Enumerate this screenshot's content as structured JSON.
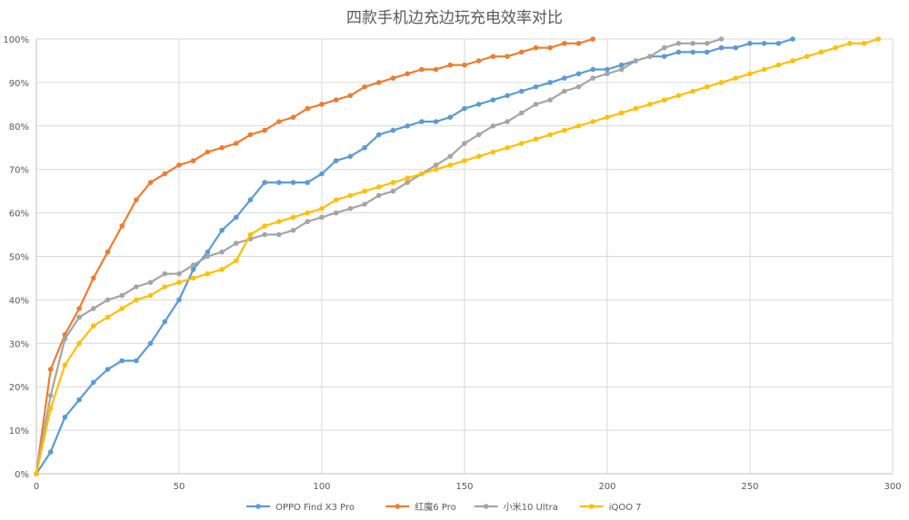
{
  "chart_data": {
    "type": "line",
    "title": "四款手机边充边玩充电效率对比",
    "xlabel": "",
    "ylabel": "",
    "xlim": [
      0,
      300
    ],
    "ylim": [
      0,
      100
    ],
    "x_ticks": [
      0,
      50,
      100,
      150,
      200,
      250,
      300
    ],
    "x_tick_labels": [
      "0",
      "50",
      "100",
      "150",
      "200",
      "250",
      "300"
    ],
    "y_ticks": [
      0,
      10,
      20,
      30,
      40,
      50,
      60,
      70,
      80,
      90,
      100
    ],
    "y_tick_labels": [
      "0%",
      "10%",
      "20%",
      "30%",
      "40%",
      "50%",
      "60%",
      "70%",
      "80%",
      "90%",
      "100%"
    ],
    "grid": true,
    "legend_position": "bottom",
    "series": [
      {
        "name": "OPPO Find X3 Pro",
        "color": "#5b9bd5",
        "points": [
          [
            0,
            0
          ],
          [
            5,
            5
          ],
          [
            10,
            13
          ],
          [
            15,
            17
          ],
          [
            20,
            21
          ],
          [
            25,
            24
          ],
          [
            30,
            26
          ],
          [
            35,
            26
          ],
          [
            40,
            30
          ],
          [
            45,
            35
          ],
          [
            50,
            40
          ],
          [
            55,
            47
          ],
          [
            60,
            51
          ],
          [
            65,
            56
          ],
          [
            70,
            59
          ],
          [
            75,
            63
          ],
          [
            80,
            67
          ],
          [
            85,
            67
          ],
          [
            90,
            67
          ],
          [
            95,
            67
          ],
          [
            100,
            69
          ],
          [
            105,
            72
          ],
          [
            110,
            73
          ],
          [
            115,
            75
          ],
          [
            120,
            78
          ],
          [
            125,
            79
          ],
          [
            130,
            80
          ],
          [
            135,
            81
          ],
          [
            140,
            81
          ],
          [
            145,
            82
          ],
          [
            150,
            84
          ],
          [
            155,
            85
          ],
          [
            160,
            86
          ],
          [
            165,
            87
          ],
          [
            170,
            88
          ],
          [
            175,
            89
          ],
          [
            180,
            90
          ],
          [
            185,
            91
          ],
          [
            190,
            92
          ],
          [
            195,
            93
          ],
          [
            200,
            93
          ],
          [
            205,
            94
          ],
          [
            210,
            95
          ],
          [
            215,
            96
          ],
          [
            220,
            96
          ],
          [
            225,
            97
          ],
          [
            230,
            97
          ],
          [
            235,
            97
          ],
          [
            240,
            98
          ],
          [
            245,
            98
          ],
          [
            250,
            99
          ],
          [
            255,
            99
          ],
          [
            260,
            99
          ],
          [
            265,
            100
          ]
        ]
      },
      {
        "name": "红魔6 Pro",
        "color": "#ed7d31",
        "points": [
          [
            0,
            0
          ],
          [
            5,
            24
          ],
          [
            10,
            32
          ],
          [
            15,
            38
          ],
          [
            20,
            45
          ],
          [
            25,
            51
          ],
          [
            30,
            57
          ],
          [
            35,
            63
          ],
          [
            40,
            67
          ],
          [
            45,
            69
          ],
          [
            50,
            71
          ],
          [
            55,
            72
          ],
          [
            60,
            74
          ],
          [
            65,
            75
          ],
          [
            70,
            76
          ],
          [
            75,
            78
          ],
          [
            80,
            79
          ],
          [
            85,
            81
          ],
          [
            90,
            82
          ],
          [
            95,
            84
          ],
          [
            100,
            85
          ],
          [
            105,
            86
          ],
          [
            110,
            87
          ],
          [
            115,
            89
          ],
          [
            120,
            90
          ],
          [
            125,
            91
          ],
          [
            130,
            92
          ],
          [
            135,
            93
          ],
          [
            140,
            93
          ],
          [
            145,
            94
          ],
          [
            150,
            94
          ],
          [
            155,
            95
          ],
          [
            160,
            96
          ],
          [
            165,
            96
          ],
          [
            170,
            97
          ],
          [
            175,
            98
          ],
          [
            180,
            98
          ],
          [
            185,
            99
          ],
          [
            190,
            99
          ],
          [
            195,
            100
          ]
        ]
      },
      {
        "name": "小米10 Ultra",
        "color": "#a5a5a5",
        "points": [
          [
            0,
            0
          ],
          [
            5,
            18
          ],
          [
            10,
            31
          ],
          [
            15,
            36
          ],
          [
            20,
            38
          ],
          [
            25,
            40
          ],
          [
            30,
            41
          ],
          [
            35,
            43
          ],
          [
            40,
            44
          ],
          [
            45,
            46
          ],
          [
            50,
            46
          ],
          [
            55,
            48
          ],
          [
            60,
            50
          ],
          [
            65,
            51
          ],
          [
            70,
            53
          ],
          [
            75,
            54
          ],
          [
            80,
            55
          ],
          [
            85,
            55
          ],
          [
            90,
            56
          ],
          [
            95,
            58
          ],
          [
            100,
            59
          ],
          [
            105,
            60
          ],
          [
            110,
            61
          ],
          [
            115,
            62
          ],
          [
            120,
            64
          ],
          [
            125,
            65
          ],
          [
            130,
            67
          ],
          [
            135,
            69
          ],
          [
            140,
            71
          ],
          [
            145,
            73
          ],
          [
            150,
            76
          ],
          [
            155,
            78
          ],
          [
            160,
            80
          ],
          [
            165,
            81
          ],
          [
            170,
            83
          ],
          [
            175,
            85
          ],
          [
            180,
            86
          ],
          [
            185,
            88
          ],
          [
            190,
            89
          ],
          [
            195,
            91
          ],
          [
            200,
            92
          ],
          [
            205,
            93
          ],
          [
            210,
            95
          ],
          [
            215,
            96
          ],
          [
            220,
            98
          ],
          [
            225,
            99
          ],
          [
            230,
            99
          ],
          [
            235,
            99
          ],
          [
            240,
            100
          ]
        ]
      },
      {
        "name": "iQOO 7",
        "color": "#ffc000",
        "points": [
          [
            0,
            0
          ],
          [
            5,
            15
          ],
          [
            10,
            25
          ],
          [
            15,
            30
          ],
          [
            20,
            34
          ],
          [
            25,
            36
          ],
          [
            30,
            38
          ],
          [
            35,
            40
          ],
          [
            40,
            41
          ],
          [
            45,
            43
          ],
          [
            50,
            44
          ],
          [
            55,
            45
          ],
          [
            60,
            46
          ],
          [
            65,
            47
          ],
          [
            70,
            49
          ],
          [
            75,
            55
          ],
          [
            80,
            57
          ],
          [
            85,
            58
          ],
          [
            90,
            59
          ],
          [
            95,
            60
          ],
          [
            100,
            61
          ],
          [
            105,
            63
          ],
          [
            110,
            64
          ],
          [
            115,
            65
          ],
          [
            120,
            66
          ],
          [
            125,
            67
          ],
          [
            130,
            68
          ],
          [
            135,
            69
          ],
          [
            140,
            70
          ],
          [
            145,
            71
          ],
          [
            150,
            72
          ],
          [
            155,
            73
          ],
          [
            160,
            74
          ],
          [
            165,
            75
          ],
          [
            170,
            76
          ],
          [
            175,
            77
          ],
          [
            180,
            78
          ],
          [
            185,
            79
          ],
          [
            190,
            80
          ],
          [
            195,
            81
          ],
          [
            200,
            82
          ],
          [
            205,
            83
          ],
          [
            210,
            84
          ],
          [
            215,
            85
          ],
          [
            220,
            86
          ],
          [
            225,
            87
          ],
          [
            230,
            88
          ],
          [
            235,
            89
          ],
          [
            240,
            90
          ],
          [
            245,
            91
          ],
          [
            250,
            92
          ],
          [
            255,
            93
          ],
          [
            260,
            94
          ],
          [
            265,
            95
          ],
          [
            270,
            96
          ],
          [
            275,
            97
          ],
          [
            280,
            98
          ],
          [
            285,
            99
          ],
          [
            290,
            99
          ],
          [
            295,
            100
          ]
        ]
      }
    ]
  }
}
